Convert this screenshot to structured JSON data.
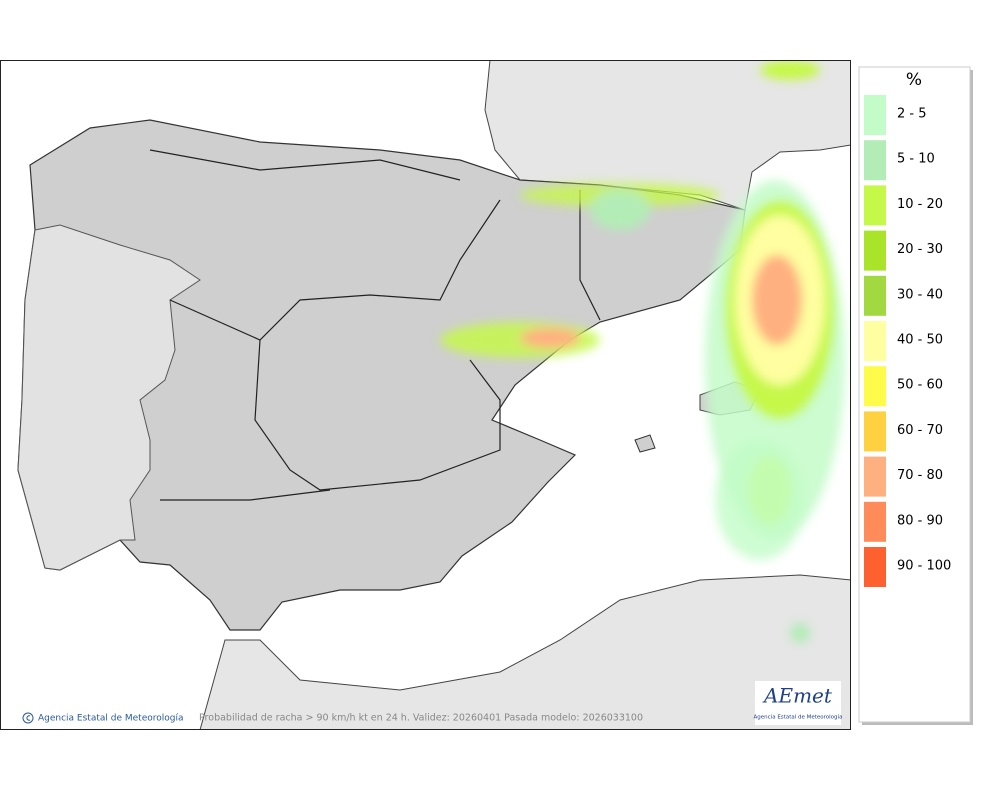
{
  "legend": {
    "title": "%",
    "items": [
      {
        "label": "2 - 5",
        "color": "#c3fcc8"
      },
      {
        "label": "5 - 10",
        "color": "#b3ecb6"
      },
      {
        "label": "10 - 20",
        "color": "#c6f84a"
      },
      {
        "label": "20 - 30",
        "color": "#a9e32a"
      },
      {
        "label": "30 - 40",
        "color": "#a2d840"
      },
      {
        "label": "40 - 50",
        "color": "#fffea0"
      },
      {
        "label": "50 - 60",
        "color": "#fffb4a"
      },
      {
        "label": "60 - 70",
        "color": "#ffd040"
      },
      {
        "label": "70 - 80",
        "color": "#ffb080"
      },
      {
        "label": "80 - 90",
        "color": "#ff8a5a"
      },
      {
        "label": "90 - 100",
        "color": "#ff6030"
      }
    ]
  },
  "footer": {
    "credit": "Agencia Estatal de Meteorología",
    "caption": "Probabilidad de racha > 90 km/h kt en 24 h. Validez: 20260401 Pasada modelo: 2026033100"
  },
  "logo": {
    "name": "AEmet",
    "subtitle": "Agencia Estatal de Meteorología"
  }
}
